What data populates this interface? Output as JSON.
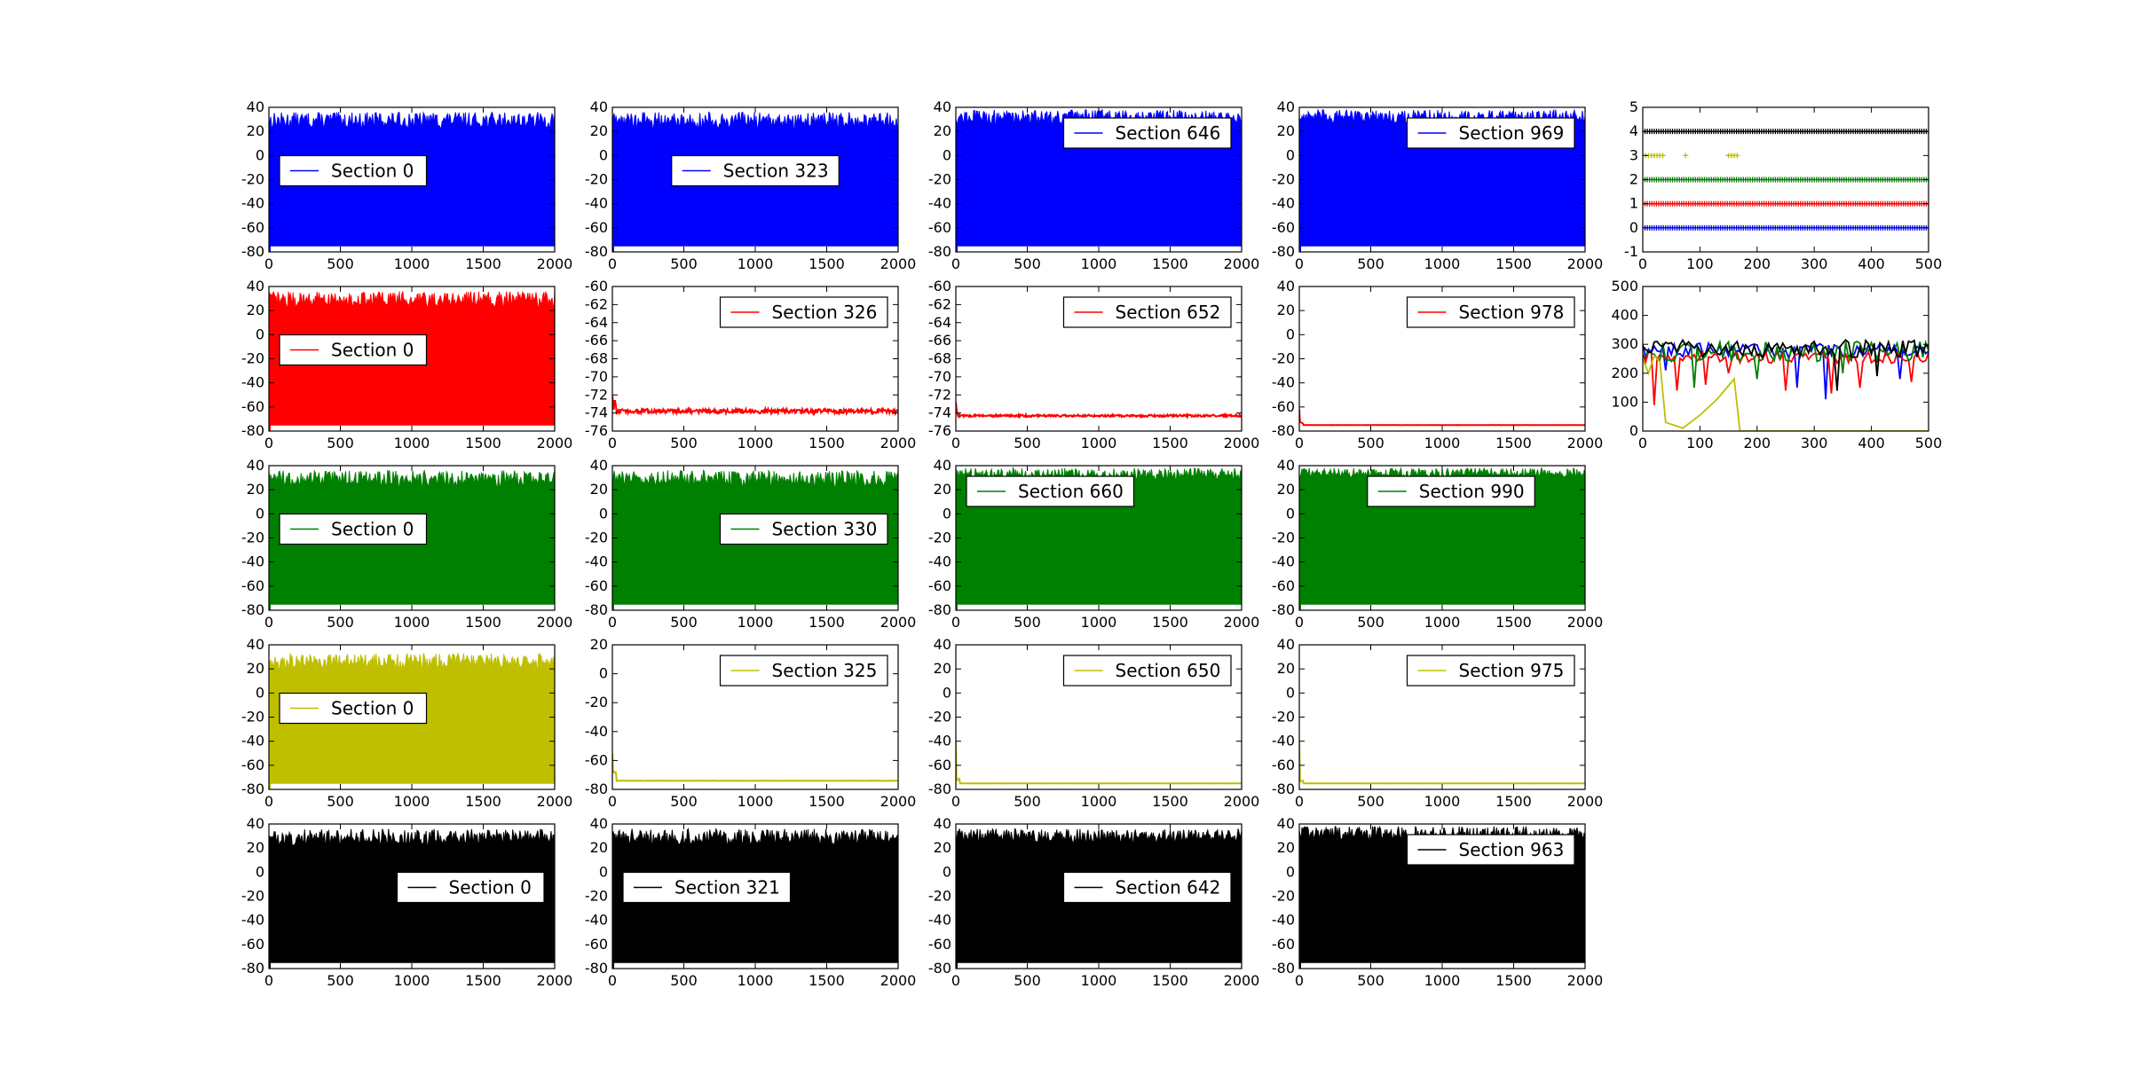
{
  "figure": {
    "background": "#ffffff"
  },
  "chart_data": [
    {
      "type": "area",
      "row": 0,
      "col": 0,
      "color": "#0000ff",
      "legend": "Section 0",
      "legend_pos": "center-left",
      "xlim": [
        0,
        2000
      ],
      "ylim": [
        -80,
        40
      ],
      "xticks": [
        0,
        500,
        1000,
        1500,
        2000
      ],
      "yticks": [
        -80,
        -60,
        -40,
        -20,
        0,
        20,
        40
      ],
      "fill_top": [
        22,
        36
      ],
      "fill_bottom": -75
    },
    {
      "type": "area",
      "row": 0,
      "col": 1,
      "color": "#0000ff",
      "legend": "Section 323",
      "legend_pos": "center",
      "xlim": [
        0,
        2000
      ],
      "ylim": [
        -80,
        40
      ],
      "xticks": [
        0,
        500,
        1000,
        1500,
        2000
      ],
      "yticks": [
        -80,
        -60,
        -40,
        -20,
        0,
        20,
        40
      ],
      "fill_top": [
        22,
        36
      ],
      "fill_bottom": -75
    },
    {
      "type": "area",
      "row": 0,
      "col": 2,
      "color": "#0000ff",
      "legend": "Section 646",
      "legend_pos": "upper-right",
      "xlim": [
        0,
        2000
      ],
      "ylim": [
        -80,
        40
      ],
      "xticks": [
        0,
        500,
        1000,
        1500,
        2000
      ],
      "yticks": [
        -80,
        -60,
        -40,
        -20,
        0,
        20,
        40
      ],
      "fill_top": [
        26,
        38
      ],
      "fill_bottom": -75
    },
    {
      "type": "area",
      "row": 0,
      "col": 3,
      "color": "#0000ff",
      "legend": "Section 969",
      "legend_pos": "upper-right",
      "xlim": [
        0,
        2000
      ],
      "ylim": [
        -80,
        40
      ],
      "xticks": [
        0,
        500,
        1000,
        1500,
        2000
      ],
      "yticks": [
        -80,
        -60,
        -40,
        -20,
        0,
        20,
        40
      ],
      "fill_top": [
        26,
        38
      ],
      "fill_bottom": -75
    },
    {
      "type": "scatter",
      "row": 0,
      "col": 4,
      "xlim": [
        0,
        500
      ],
      "ylim": [
        -1,
        5
      ],
      "xticks": [
        0,
        100,
        200,
        300,
        400,
        500
      ],
      "yticks": [
        -1,
        0,
        1,
        2,
        3,
        4,
        5
      ],
      "series": [
        {
          "color": "#0000ff",
          "y": 0,
          "x_range": [
            0,
            500
          ]
        },
        {
          "color": "#ff0000",
          "y": 1,
          "x_range": [
            0,
            500
          ]
        },
        {
          "color": "#008000",
          "y": 2,
          "x_range": [
            0,
            500
          ]
        },
        {
          "color": "#bfbf00",
          "y": 3,
          "x": [
            5,
            10,
            15,
            20,
            25,
            30,
            35,
            75,
            150,
            155,
            160,
            165
          ]
        },
        {
          "color": "#000000",
          "y": 4,
          "x_range": [
            0,
            500
          ]
        }
      ]
    },
    {
      "type": "area",
      "row": 1,
      "col": 0,
      "color": "#ff0000",
      "legend": "Section 0",
      "legend_pos": "center-left",
      "xlim": [
        0,
        2000
      ],
      "ylim": [
        -80,
        40
      ],
      "xticks": [
        0,
        500,
        1000,
        1500,
        2000
      ],
      "yticks": [
        -80,
        -60,
        -40,
        -20,
        0,
        20,
        40
      ],
      "fill_top": [
        22,
        36
      ],
      "fill_bottom": -75
    },
    {
      "type": "line",
      "row": 1,
      "col": 1,
      "color": "#ff0000",
      "legend": "Section 326",
      "legend_pos": "upper-right",
      "xlim": [
        0,
        2000
      ],
      "ylim": [
        -76,
        -60
      ],
      "xticks": [
        0,
        500,
        1000,
        1500,
        2000
      ],
      "yticks": [
        -76,
        -74,
        -72,
        -70,
        -68,
        -66,
        -64,
        -62,
        -60
      ],
      "level": -73.8,
      "start": [
        -72,
        -73.2
      ],
      "noise": 0.25
    },
    {
      "type": "line",
      "row": 1,
      "col": 2,
      "color": "#ff0000",
      "legend": "Section 652",
      "legend_pos": "upper-right",
      "xlim": [
        0,
        2000
      ],
      "ylim": [
        -76,
        -60
      ],
      "xticks": [
        0,
        500,
        1000,
        1500,
        2000
      ],
      "yticks": [
        -76,
        -74,
        -72,
        -70,
        -68,
        -66,
        -64,
        -62,
        -60
      ],
      "level": -74.3,
      "start": [
        -72.8,
        -73.9
      ],
      "noise": 0.12
    },
    {
      "type": "line",
      "row": 1,
      "col": 3,
      "color": "#ff0000",
      "legend": "Section 978",
      "legend_pos": "upper-right",
      "xlim": [
        0,
        2000
      ],
      "ylim": [
        -80,
        40
      ],
      "xticks": [
        0,
        500,
        1000,
        1500,
        2000
      ],
      "yticks": [
        -80,
        -60,
        -40,
        -20,
        0,
        20,
        40
      ],
      "level": -75,
      "start": [
        -62,
        -73
      ],
      "noise": 0.1
    },
    {
      "type": "line",
      "row": 1,
      "col": 4,
      "xlim": [
        0,
        500
      ],
      "ylim": [
        0,
        500
      ],
      "xticks": [
        0,
        100,
        200,
        300,
        400,
        500
      ],
      "yticks": [
        0,
        100,
        200,
        300,
        400,
        500
      ],
      "series": [
        {
          "color": "#0000ff",
          "base": 280,
          "amp": 25,
          "dips": [
            [
              320,
              110
            ],
            [
              450,
              180
            ],
            [
              270,
              150
            ],
            [
              40,
              210
            ]
          ]
        },
        {
          "color": "#ff0000",
          "base": 255,
          "amp": 20,
          "dips": [
            [
              20,
              90
            ],
            [
              60,
              140
            ],
            [
              110,
              160
            ],
            [
              150,
              200
            ],
            [
              250,
              140
            ],
            [
              330,
              130
            ],
            [
              380,
              150
            ],
            [
              470,
              170
            ]
          ]
        },
        {
          "color": "#008000",
          "base": 275,
          "amp": 35,
          "dips": [
            [
              90,
              150
            ],
            [
              200,
              180
            ],
            [
              350,
              200
            ]
          ]
        },
        {
          "color": "#000000",
          "base": 285,
          "amp": 30,
          "dips": [
            [
              340,
              140
            ],
            [
              410,
              190
            ]
          ]
        },
        {
          "color": "#bfbf00",
          "points": [
            [
              0,
              250
            ],
            [
              10,
              200
            ],
            [
              20,
              260
            ],
            [
              30,
              240
            ],
            [
              40,
              30
            ],
            [
              70,
              10
            ],
            [
              100,
              55
            ],
            [
              130,
              110
            ],
            [
              160,
              180
            ],
            [
              170,
              0
            ],
            [
              500,
              0
            ]
          ]
        }
      ]
    },
    {
      "type": "area",
      "row": 2,
      "col": 0,
      "color": "#008000",
      "legend": "Section 0",
      "legend_pos": "center-left",
      "xlim": [
        0,
        2000
      ],
      "ylim": [
        -80,
        40
      ],
      "xticks": [
        0,
        500,
        1000,
        1500,
        2000
      ],
      "yticks": [
        -80,
        -60,
        -40,
        -20,
        0,
        20,
        40
      ],
      "fill_top": [
        22,
        36
      ],
      "fill_bottom": -75
    },
    {
      "type": "area",
      "row": 2,
      "col": 1,
      "color": "#008000",
      "legend": "Section 330",
      "legend_pos": "center-right",
      "xlim": [
        0,
        2000
      ],
      "ylim": [
        -80,
        40
      ],
      "xticks": [
        0,
        500,
        1000,
        1500,
        2000
      ],
      "yticks": [
        -80,
        -60,
        -40,
        -20,
        0,
        20,
        40
      ],
      "fill_top": [
        22,
        36
      ],
      "fill_bottom": -75
    },
    {
      "type": "area",
      "row": 2,
      "col": 2,
      "color": "#008000",
      "legend": "Section 660",
      "legend_pos": "upper-left",
      "xlim": [
        0,
        2000
      ],
      "ylim": [
        -80,
        40
      ],
      "xticks": [
        0,
        500,
        1000,
        1500,
        2000
      ],
      "yticks": [
        -80,
        -60,
        -40,
        -20,
        0,
        20,
        40
      ],
      "fill_top": [
        28,
        38
      ],
      "fill_bottom": -75
    },
    {
      "type": "area",
      "row": 2,
      "col": 3,
      "color": "#008000",
      "legend": "Section 990",
      "legend_pos": "upper-center",
      "xlim": [
        0,
        2000
      ],
      "ylim": [
        -80,
        40
      ],
      "xticks": [
        0,
        500,
        1000,
        1500,
        2000
      ],
      "yticks": [
        -80,
        -60,
        -40,
        -20,
        0,
        20,
        40
      ],
      "fill_top": [
        30,
        38
      ],
      "fill_bottom": -75
    },
    {
      "type": "area",
      "row": 3,
      "col": 0,
      "color": "#bfbf00",
      "legend": "Section 0",
      "legend_pos": "center-left",
      "xlim": [
        0,
        2000
      ],
      "ylim": [
        -80,
        40
      ],
      "xticks": [
        0,
        500,
        1000,
        1500,
        2000
      ],
      "yticks": [
        -80,
        -60,
        -40,
        -20,
        0,
        20,
        40
      ],
      "fill_top": [
        20,
        33
      ],
      "fill_bottom": -75
    },
    {
      "type": "line",
      "row": 3,
      "col": 1,
      "color": "#bfbf00",
      "legend": "Section 325",
      "legend_pos": "upper-right",
      "xlim": [
        0,
        2000
      ],
      "ylim": [
        -80,
        20
      ],
      "xticks": [
        0,
        500,
        1000,
        1500,
        2000
      ],
      "yticks": [
        -80,
        -60,
        -40,
        -20,
        0,
        20
      ],
      "level": -74,
      "start": [
        -55,
        -68
      ],
      "noise": 0.15
    },
    {
      "type": "line",
      "row": 3,
      "col": 2,
      "color": "#bfbf00",
      "legend": "Section 650",
      "legend_pos": "upper-right",
      "xlim": [
        0,
        2000
      ],
      "ylim": [
        -80,
        40
      ],
      "xticks": [
        0,
        500,
        1000,
        1500,
        2000
      ],
      "yticks": [
        -80,
        -60,
        -40,
        -20,
        0,
        20,
        40
      ],
      "level": -75,
      "start": [
        -40,
        -72
      ],
      "noise": 0.1
    },
    {
      "type": "line",
      "row": 3,
      "col": 3,
      "color": "#bfbf00",
      "legend": "Section 975",
      "legend_pos": "upper-right",
      "xlim": [
        0,
        2000
      ],
      "ylim": [
        -80,
        40
      ],
      "xticks": [
        0,
        500,
        1000,
        1500,
        2000
      ],
      "yticks": [
        -80,
        -60,
        -40,
        -20,
        0,
        20,
        40
      ],
      "level": -75,
      "start": [
        -40,
        -73
      ],
      "noise": 0.1
    },
    {
      "type": "area",
      "row": 4,
      "col": 0,
      "color": "#000000",
      "legend": "Section 0",
      "legend_pos": "center-right",
      "xlim": [
        0,
        2000
      ],
      "ylim": [
        -80,
        40
      ],
      "xticks": [
        0,
        500,
        1000,
        1500,
        2000
      ],
      "yticks": [
        -80,
        -60,
        -40,
        -20,
        0,
        20,
        40
      ],
      "fill_top": [
        22,
        36
      ],
      "fill_bottom": -75
    },
    {
      "type": "area",
      "row": 4,
      "col": 1,
      "color": "#000000",
      "legend": "Section 321",
      "legend_pos": "center-left",
      "xlim": [
        0,
        2000
      ],
      "ylim": [
        -80,
        40
      ],
      "xticks": [
        0,
        500,
        1000,
        1500,
        2000
      ],
      "yticks": [
        -80,
        -60,
        -40,
        -20,
        0,
        20,
        40
      ],
      "fill_top": [
        22,
        36
      ],
      "fill_bottom": -75
    },
    {
      "type": "area",
      "row": 4,
      "col": 2,
      "color": "#000000",
      "legend": "Section 642",
      "legend_pos": "center-right",
      "xlim": [
        0,
        2000
      ],
      "ylim": [
        -80,
        40
      ],
      "xticks": [
        0,
        500,
        1000,
        1500,
        2000
      ],
      "yticks": [
        -80,
        -60,
        -40,
        -20,
        0,
        20,
        40
      ],
      "fill_top": [
        24,
        36
      ],
      "fill_bottom": -75
    },
    {
      "type": "area",
      "row": 4,
      "col": 3,
      "color": "#000000",
      "legend": "Section 963",
      "legend_pos": "upper-right",
      "xlim": [
        0,
        2000
      ],
      "ylim": [
        -80,
        40
      ],
      "xticks": [
        0,
        500,
        1000,
        1500,
        2000
      ],
      "yticks": [
        -80,
        -60,
        -40,
        -20,
        0,
        20,
        40
      ],
      "fill_top": [
        26,
        38
      ],
      "fill_bottom": -75
    }
  ]
}
